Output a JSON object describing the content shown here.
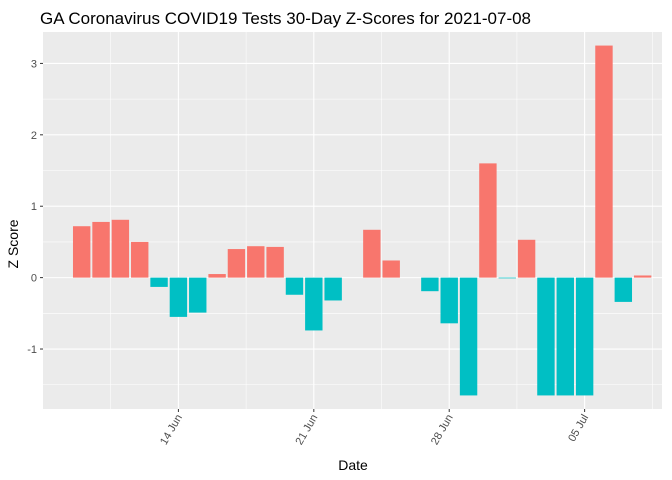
{
  "chart_data": {
    "type": "bar",
    "title": "GA Coronavirus COVID19 Tests 30-Day Z-Scores for 2021-07-08",
    "xlabel": "Date",
    "ylabel": "Z Score",
    "x": [
      "2021-06-09",
      "2021-06-10",
      "2021-06-11",
      "2021-06-12",
      "2021-06-13",
      "2021-06-14",
      "2021-06-15",
      "2021-06-16",
      "2021-06-17",
      "2021-06-18",
      "2021-06-19",
      "2021-06-20",
      "2021-06-21",
      "2021-06-22",
      "2021-06-23",
      "2021-06-24",
      "2021-06-25",
      "2021-06-26",
      "2021-06-27",
      "2021-06-28",
      "2021-06-29",
      "2021-06-30",
      "2021-07-01",
      "2021-07-02",
      "2021-07-03",
      "2021-07-04",
      "2021-07-05",
      "2021-07-06",
      "2021-07-07",
      "2021-07-08"
    ],
    "values": [
      0.72,
      0.78,
      0.81,
      0.5,
      -0.13,
      -0.55,
      -0.49,
      0.05,
      0.4,
      0.44,
      0.43,
      -0.24,
      -0.74,
      -0.32,
      0.0,
      0.67,
      0.24,
      0.0,
      -0.19,
      -0.64,
      -1.65,
      1.6,
      -0.01,
      0.53,
      -1.65,
      -1.65,
      -1.65,
      3.25,
      -0.34,
      0.03
    ],
    "positive_color": "#F8766D",
    "negative_color": "#00BFC4",
    "x_ticks": [
      {
        "date": "2021-06-14",
        "label": "14 Jun"
      },
      {
        "date": "2021-06-21",
        "label": "21 Jun"
      },
      {
        "date": "2021-06-28",
        "label": "28 Jun"
      },
      {
        "date": "2021-07-05",
        "label": "05 Jul"
      }
    ],
    "y_ticks": [
      -1,
      0,
      1,
      2,
      3
    ],
    "ylim": [
      -1.84,
      3.44
    ],
    "xlim": [
      "2021-06-07",
      "2021-07-09"
    ],
    "grid": true,
    "legend": "none",
    "panel_background": "#EBEBEB",
    "grid_color": "#FFFFFF"
  }
}
